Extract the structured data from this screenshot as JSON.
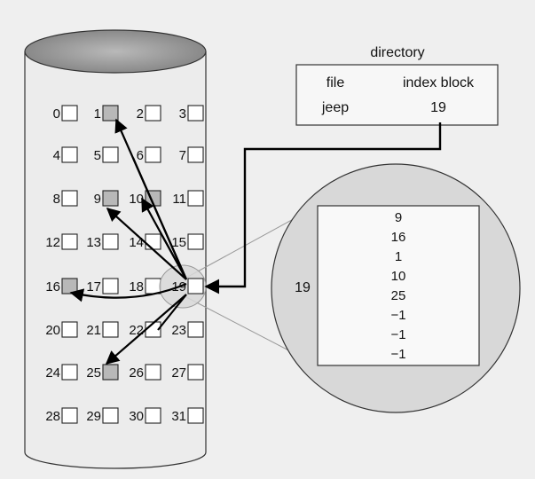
{
  "directory": {
    "title": "directory",
    "columns": [
      "file",
      "index block"
    ],
    "row": {
      "file": "jeep",
      "index_block": "19"
    }
  },
  "disk": {
    "block_labels": [
      "0",
      "1",
      "2",
      "3",
      "4",
      "5",
      "6",
      "7",
      "8",
      "9",
      "10",
      "11",
      "12",
      "13",
      "14",
      "15",
      "16",
      "17",
      "18",
      "19",
      "20",
      "21",
      "22",
      "23",
      "24",
      "25",
      "26",
      "27",
      "28",
      "29",
      "30",
      "31"
    ],
    "used_blocks": [
      1,
      9,
      10,
      16,
      25
    ],
    "index_block": 19
  },
  "magnified": {
    "label": "19",
    "entries": [
      "9",
      "16",
      "1",
      "10",
      "25",
      "−1",
      "−1",
      "−1"
    ]
  },
  "colors": {
    "background": "#efefef",
    "block_used": "#b8b8b8",
    "block_free": "#ffffff",
    "cylinder_top": "#9a9a9a",
    "lens": "#d8d8d8"
  }
}
